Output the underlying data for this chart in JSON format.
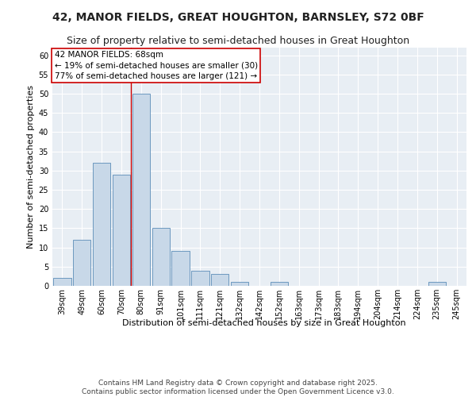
{
  "title_line1": "42, MANOR FIELDS, GREAT HOUGHTON, BARNSLEY, S72 0BF",
  "title_line2": "Size of property relative to semi-detached houses in Great Houghton",
  "xlabel": "Distribution of semi-detached houses by size in Great Houghton",
  "ylabel": "Number of semi-detached properties",
  "categories": [
    "39sqm",
    "49sqm",
    "60sqm",
    "70sqm",
    "80sqm",
    "91sqm",
    "101sqm",
    "111sqm",
    "121sqm",
    "132sqm",
    "142sqm",
    "152sqm",
    "163sqm",
    "173sqm",
    "183sqm",
    "194sqm",
    "204sqm",
    "214sqm",
    "224sqm",
    "235sqm",
    "245sqm"
  ],
  "values": [
    2,
    12,
    32,
    29,
    50,
    15,
    9,
    4,
    3,
    1,
    0,
    1,
    0,
    0,
    0,
    0,
    0,
    0,
    0,
    1,
    0
  ],
  "bar_color": "#c8d8e8",
  "bar_edge_color": "#5b8db8",
  "background_color": "#e8eef4",
  "grid_color": "#ffffff",
  "vline_x": 3.5,
  "vline_color": "#cc0000",
  "annotation_title": "42 MANOR FIELDS: 68sqm",
  "annotation_line1": "← 19% of semi-detached houses are smaller (30)",
  "annotation_line2": "77% of semi-detached houses are larger (121) →",
  "annotation_box_color": "#ffffff",
  "annotation_box_edge_color": "#cc0000",
  "ylim": [
    0,
    62
  ],
  "yticks": [
    0,
    5,
    10,
    15,
    20,
    25,
    30,
    35,
    40,
    45,
    50,
    55,
    60
  ],
  "footer": "Contains HM Land Registry data © Crown copyright and database right 2025.\nContains public sector information licensed under the Open Government Licence v3.0.",
  "title_fontsize": 10,
  "subtitle_fontsize": 9,
  "axis_label_fontsize": 8,
  "tick_fontsize": 7,
  "annotation_fontsize": 7.5,
  "footer_fontsize": 6.5
}
